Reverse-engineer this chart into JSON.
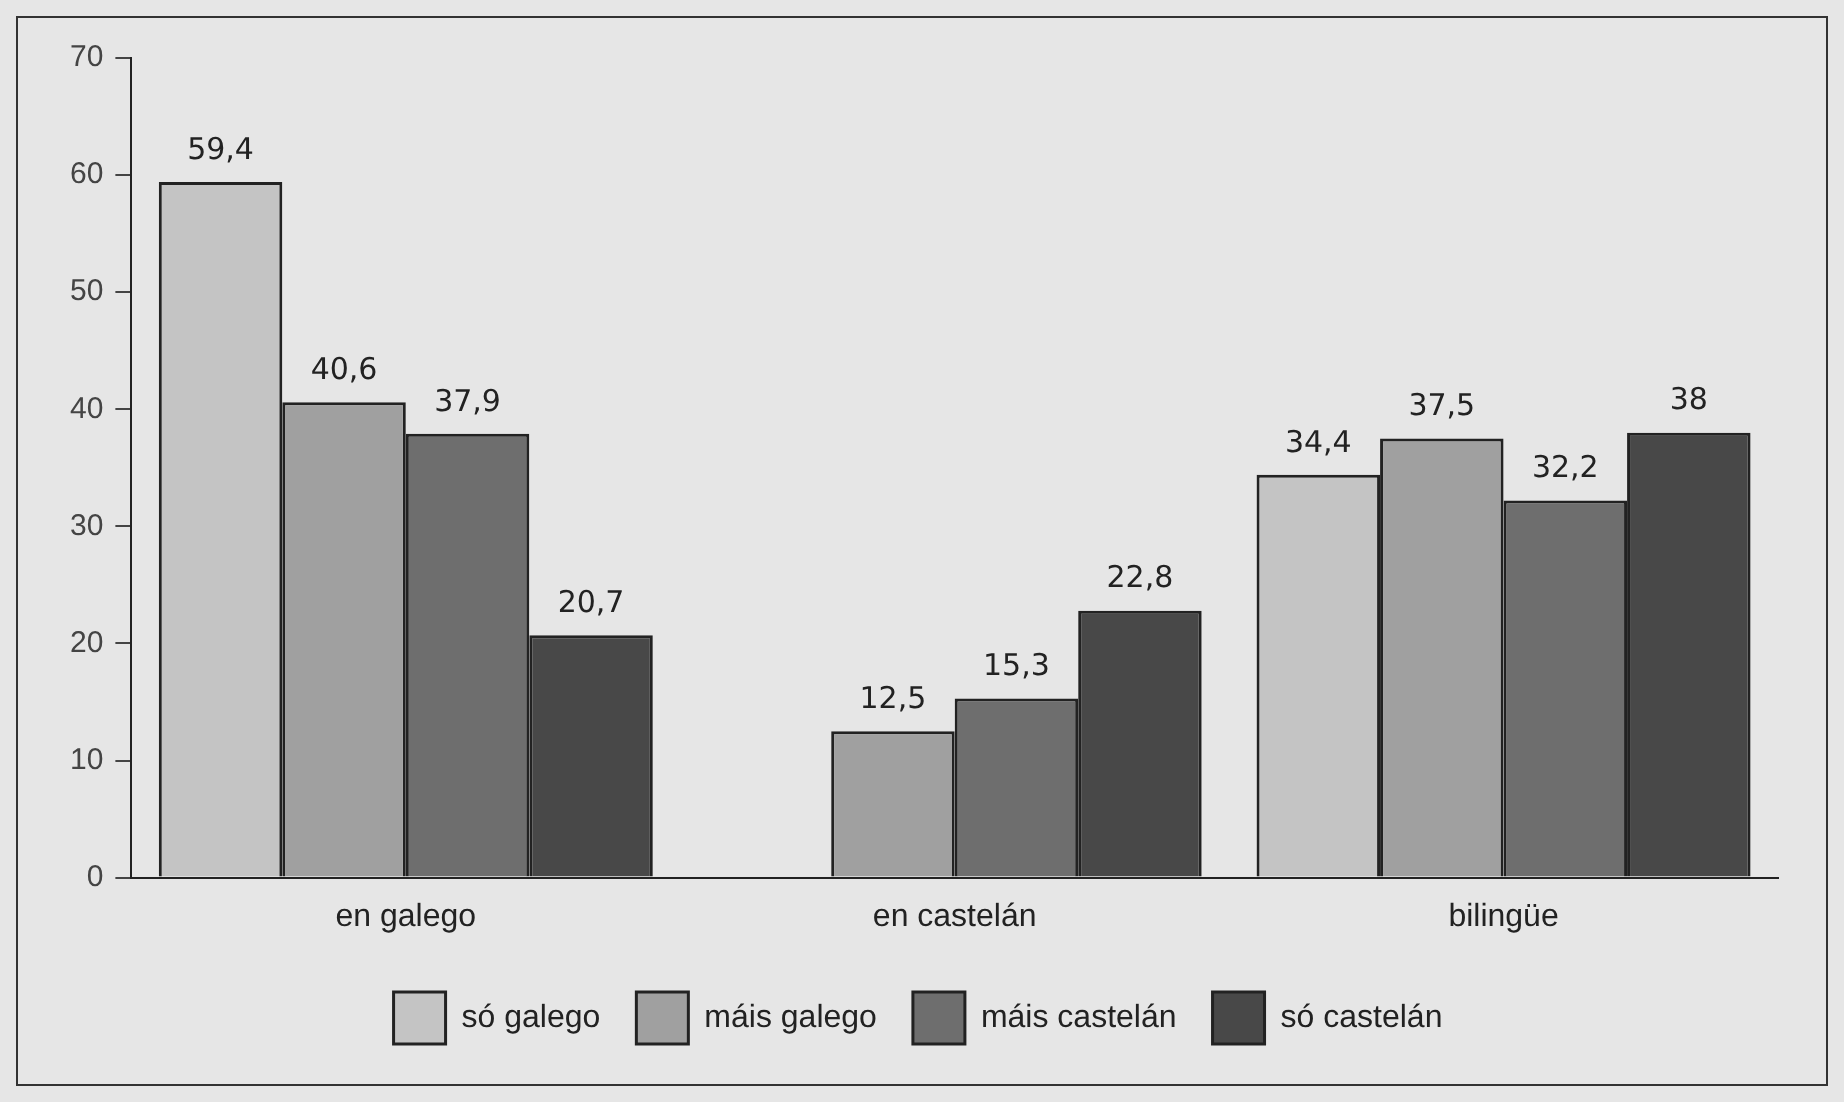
{
  "chart_data": {
    "type": "bar",
    "categories": [
      "en galego",
      "en castelán",
      "bilingüe"
    ],
    "series": [
      {
        "name": "só galego",
        "color": "#c4c4c4",
        "values": [
          59.4,
          null,
          34.4
        ],
        "value_labels": [
          "59,4",
          null,
          "34,4"
        ]
      },
      {
        "name": "máis galego",
        "color": "#a0a0a0",
        "values": [
          40.6,
          12.5,
          37.5
        ],
        "value_labels": [
          "40,6",
          "12,5",
          "37,5"
        ]
      },
      {
        "name": "máis castelán",
        "color": "#6e6e6e",
        "values": [
          37.9,
          15.3,
          32.2
        ],
        "value_labels": [
          "37,9",
          "15,3",
          "32,2"
        ]
      },
      {
        "name": "só castelán",
        "color": "#484848",
        "values": [
          20.7,
          22.8,
          38
        ],
        "value_labels": [
          "20,7",
          "22,8",
          "38"
        ]
      }
    ],
    "ylim": [
      0,
      70
    ],
    "yticks": [
      0,
      10,
      20,
      30,
      40,
      50,
      60,
      70
    ],
    "grid": false,
    "legend": "bottom"
  }
}
